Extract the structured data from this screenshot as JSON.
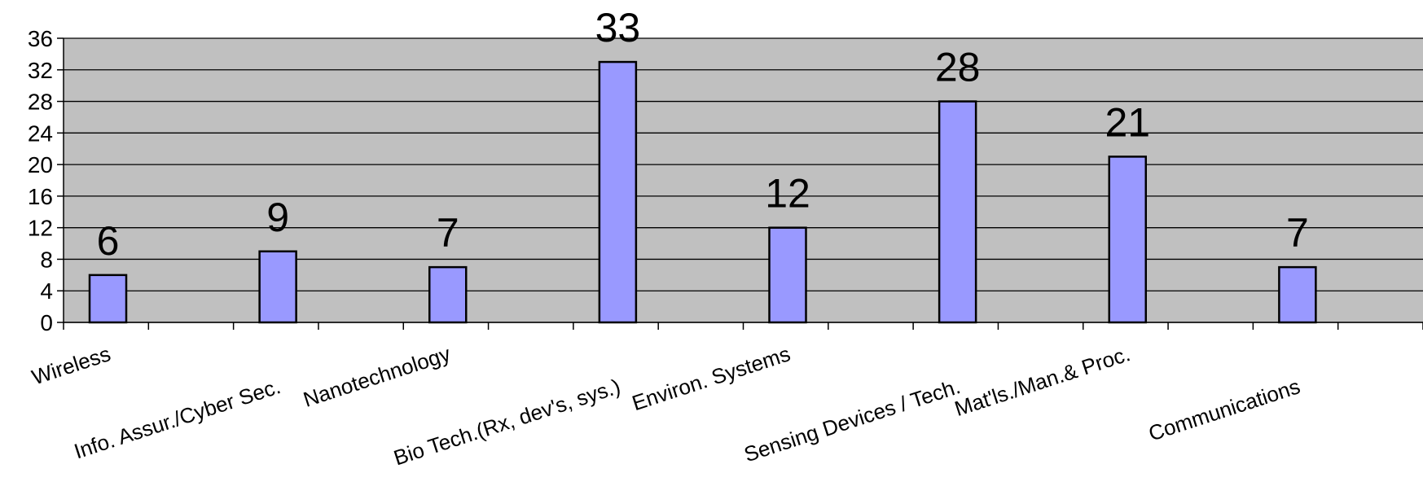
{
  "chart_data": {
    "type": "bar",
    "categories": [
      "Wireless",
      "Info. Assur./Cyber Sec.",
      "Nanotechnology",
      "Bio Tech.(Rx, dev's, sys.)",
      "Environ. Systems",
      "Sensing Devices / Tech.",
      "Mat'ls./Man.& Proc.",
      "Communications"
    ],
    "values": [
      6,
      9,
      7,
      33,
      12,
      28,
      21,
      7
    ],
    "ylim": [
      0,
      36
    ],
    "yticks": [
      0,
      4,
      8,
      12,
      16,
      20,
      24,
      28,
      32,
      36
    ],
    "grid": true,
    "data_labels": true,
    "colors": {
      "plot_background": "#c0c0c0",
      "bar_fill": "#9999ff",
      "bar_stroke": "#000000",
      "grid": "#000000"
    }
  }
}
